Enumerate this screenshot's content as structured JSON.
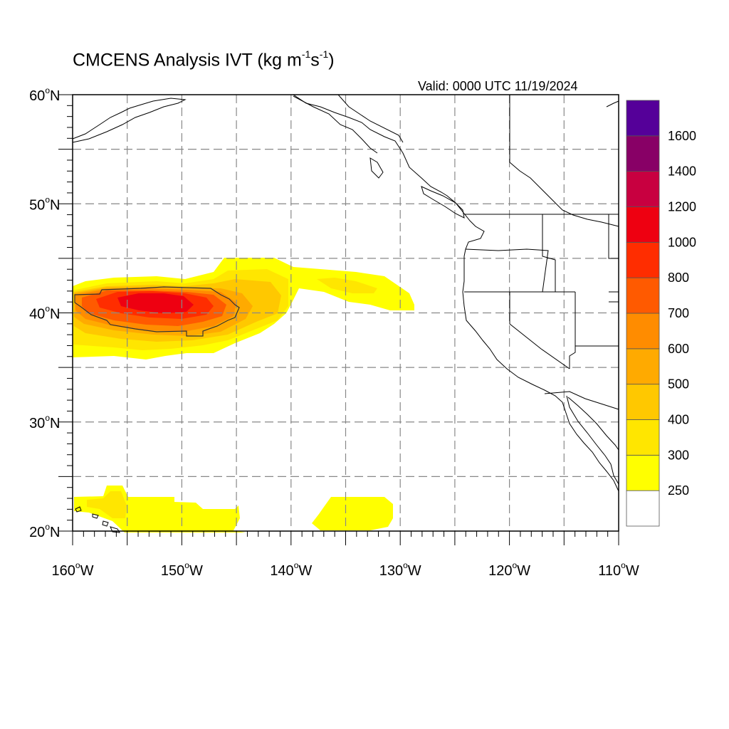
{
  "title": {
    "main": "CMCENS Analysis IVT (kg m",
    "unit_sup1": "-1",
    "unit_mid": "s",
    "unit_sup2": "-1",
    "unit_end": ")"
  },
  "valid_text": "Valid: 0000 UTC 11/19/2024",
  "lat_labels": [
    {
      "value": 60,
      "text": "60",
      "hemi": "N"
    },
    {
      "value": 50,
      "text": "50",
      "hemi": "N"
    },
    {
      "value": 40,
      "text": "40",
      "hemi": "N"
    },
    {
      "value": 30,
      "text": "30",
      "hemi": "N"
    },
    {
      "value": 20,
      "text": "20",
      "hemi": "N"
    }
  ],
  "lon_labels": [
    {
      "value": -160,
      "text": "160",
      "hemi": "W"
    },
    {
      "value": -150,
      "text": "150",
      "hemi": "W"
    },
    {
      "value": -140,
      "text": "140",
      "hemi": "W"
    },
    {
      "value": -130,
      "text": "130",
      "hemi": "W"
    },
    {
      "value": -120,
      "text": "120",
      "hemi": "W"
    },
    {
      "value": -110,
      "text": "110",
      "hemi": "W"
    }
  ],
  "colorbar": {
    "levels": [
      "250",
      "300",
      "400",
      "500",
      "600",
      "700",
      "800",
      "1000",
      "1200",
      "1400",
      "1600"
    ],
    "colors": [
      "#ffffff",
      "#ffff00",
      "#ffe600",
      "#ffc800",
      "#ffaa00",
      "#ff8c00",
      "#ff5a00",
      "#ff2d00",
      "#ee0011",
      "#c80040",
      "#880066",
      "#550099"
    ]
  },
  "map_extent": {
    "lon_min": -160,
    "lon_max": -110,
    "lat_min": 20,
    "lat_max": 60
  },
  "colors": {
    "grid": "#888888",
    "coast": "#000000",
    "state": "#000000"
  }
}
